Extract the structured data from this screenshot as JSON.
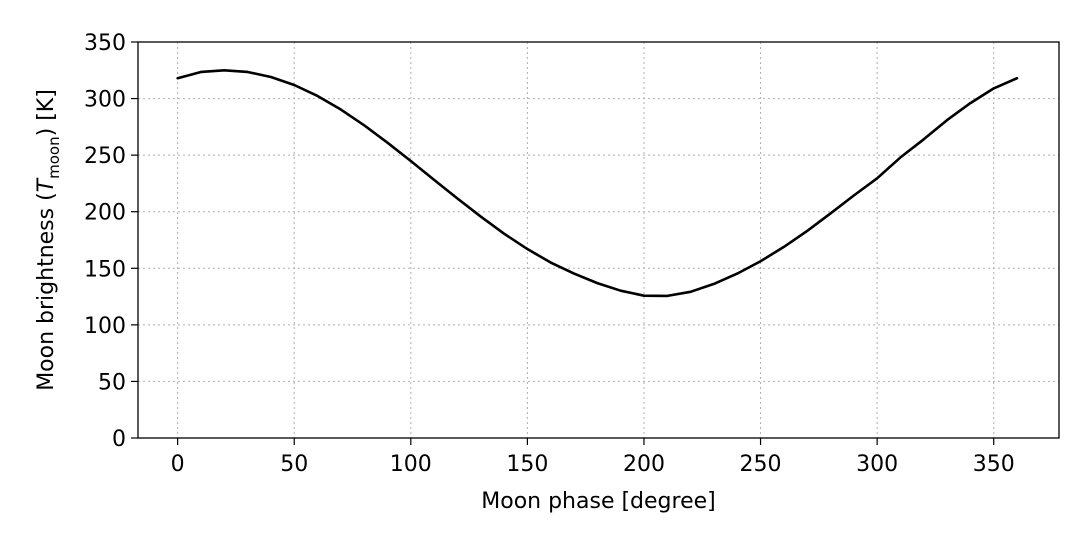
{
  "chart_data": {
    "type": "line",
    "xlabel": "Moon phase [degree]",
    "ylabel_parts": {
      "prefix": "Moon brightness (",
      "symbol": "T",
      "subscript": "moon",
      "suffix": ") [K]"
    },
    "xlim": [
      -17,
      378
    ],
    "ylim": [
      0,
      350
    ],
    "xticks": [
      0,
      50,
      100,
      150,
      200,
      250,
      300,
      350
    ],
    "yticks": [
      0,
      50,
      100,
      150,
      200,
      250,
      300,
      350
    ],
    "grid": true,
    "line_color": "#000000",
    "series": [
      {
        "x": [
          0,
          10,
          20,
          30,
          40,
          50,
          60,
          70,
          80,
          90,
          100,
          110,
          120,
          130,
          140,
          150,
          160,
          170,
          180,
          190,
          200,
          210,
          220,
          230,
          240,
          250,
          260,
          270,
          280,
          290,
          300,
          310,
          320,
          330,
          340,
          350,
          360
        ],
        "y": [
          318.0,
          323.5,
          325.0,
          323.5,
          319.1,
          312.0,
          302.3,
          290.3,
          276.4,
          261.0,
          244.8,
          228.1,
          211.7,
          195.7,
          180.6,
          167.0,
          155.1,
          145.3,
          136.9,
          130.2,
          125.8,
          125.6,
          129.2,
          136.2,
          145.3,
          156.2,
          168.9,
          183.0,
          198.5,
          214.3,
          229.5,
          248.0,
          264.0,
          281.0,
          296.0,
          309.0,
          318.0
        ]
      }
    ]
  }
}
